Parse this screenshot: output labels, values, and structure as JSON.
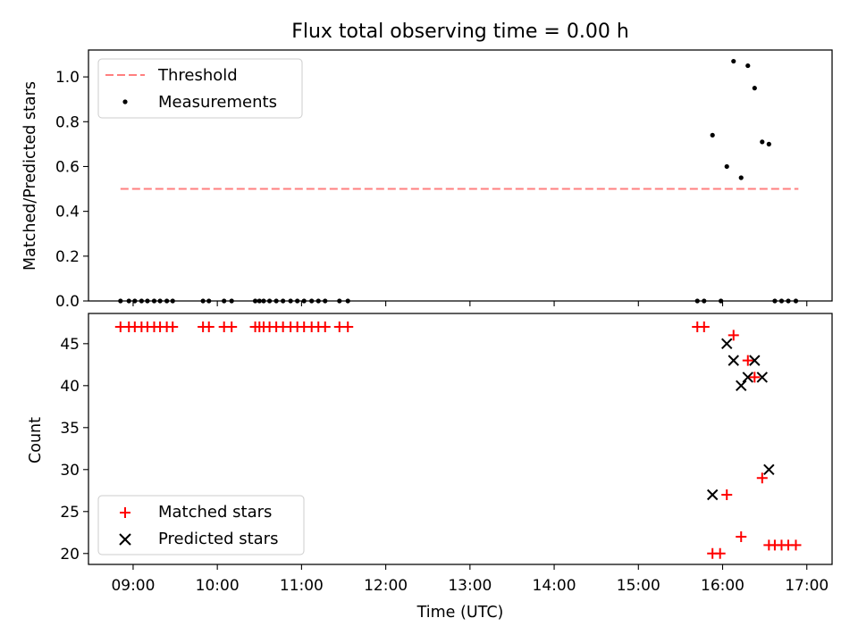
{
  "chart_data": {
    "type": "scatter",
    "title": "Flux total observing time = 0.00 h",
    "xlabel": "Time (UTC)",
    "x_tick_labels": [
      "09:00",
      "10:00",
      "11:00",
      "12:00",
      "13:00",
      "14:00",
      "15:00",
      "16:00",
      "17:00"
    ],
    "xlim_hours": [
      8.47,
      17.3
    ],
    "panels": [
      {
        "ylabel": "Matched/Predicted stars",
        "ylim": [
          0,
          1.12
        ],
        "y_tick_labels": [
          "0.0",
          "0.2",
          "0.4",
          "0.6",
          "0.8",
          "1.0"
        ],
        "y_tick_values": [
          0,
          0.2,
          0.4,
          0.6,
          0.8,
          1.0
        ],
        "legend_position": "top-left",
        "grid": false,
        "series": [
          {
            "name": "Threshold",
            "kind": "dashed-line",
            "color": "#ff7f7f",
            "x": [
              8.85,
              16.9
            ],
            "y": [
              0.5,
              0.5
            ]
          },
          {
            "name": "Measurements",
            "kind": "dot",
            "color": "#000000",
            "x": [
              8.85,
              8.95,
              9.02,
              9.1,
              9.17,
              9.25,
              9.32,
              9.4,
              9.47,
              9.83,
              9.9,
              10.08,
              10.17,
              10.45,
              10.5,
              10.55,
              10.62,
              10.7,
              10.78,
              10.87,
              10.95,
              11.03,
              11.12,
              11.2,
              11.28,
              11.45,
              11.55,
              15.7,
              15.78,
              15.88,
              15.98,
              16.05,
              16.13,
              16.22,
              16.3,
              16.38,
              16.47,
              16.55,
              16.62,
              16.7,
              16.78,
              16.87
            ],
            "y": [
              0,
              0,
              0,
              0,
              0,
              0,
              0,
              0,
              0,
              0,
              0,
              0,
              0,
              0,
              0,
              0,
              0,
              0,
              0,
              0,
              0,
              0,
              0,
              0,
              0,
              0,
              0,
              0,
              0,
              0.74,
              0,
              0.6,
              1.07,
              0.55,
              1.05,
              0.95,
              0.71,
              0.7,
              0,
              0,
              0,
              0
            ]
          }
        ]
      },
      {
        "ylabel": "Count",
        "ylim": [
          18.7,
          48.6
        ],
        "y_tick_labels": [
          "20",
          "25",
          "30",
          "35",
          "40",
          "45"
        ],
        "y_tick_values": [
          20,
          25,
          30,
          35,
          40,
          45
        ],
        "legend_position": "bottom-left",
        "grid": false,
        "series": [
          {
            "name": "Matched stars",
            "kind": "plus",
            "color": "#ff0000",
            "x": [
              8.85,
              8.95,
              9.02,
              9.1,
              9.17,
              9.25,
              9.32,
              9.4,
              9.47,
              9.83,
              9.9,
              10.08,
              10.17,
              10.45,
              10.5,
              10.55,
              10.62,
              10.7,
              10.78,
              10.87,
              10.95,
              11.03,
              11.12,
              11.2,
              11.28,
              11.45,
              11.55,
              15.7,
              15.78,
              15.88,
              15.97,
              16.05,
              16.13,
              16.22,
              16.3,
              16.38,
              16.47,
              16.55,
              16.62,
              16.7,
              16.78,
              16.87
            ],
            "y": [
              47,
              47,
              47,
              47,
              47,
              47,
              47,
              47,
              47,
              47,
              47,
              47,
              47,
              47,
              47,
              47,
              47,
              47,
              47,
              47,
              47,
              47,
              47,
              47,
              47,
              47,
              47,
              47,
              47,
              20,
              20,
              27,
              46,
              22,
              43,
              41,
              29,
              21,
              21,
              21,
              21,
              21
            ]
          },
          {
            "name": "Predicted stars",
            "kind": "x",
            "color": "#000000",
            "x": [
              15.88,
              16.05,
              16.13,
              16.22,
              16.3,
              16.38,
              16.47,
              16.55
            ],
            "y": [
              27,
              45,
              43,
              40,
              41,
              43,
              41,
              30
            ]
          }
        ]
      }
    ]
  }
}
